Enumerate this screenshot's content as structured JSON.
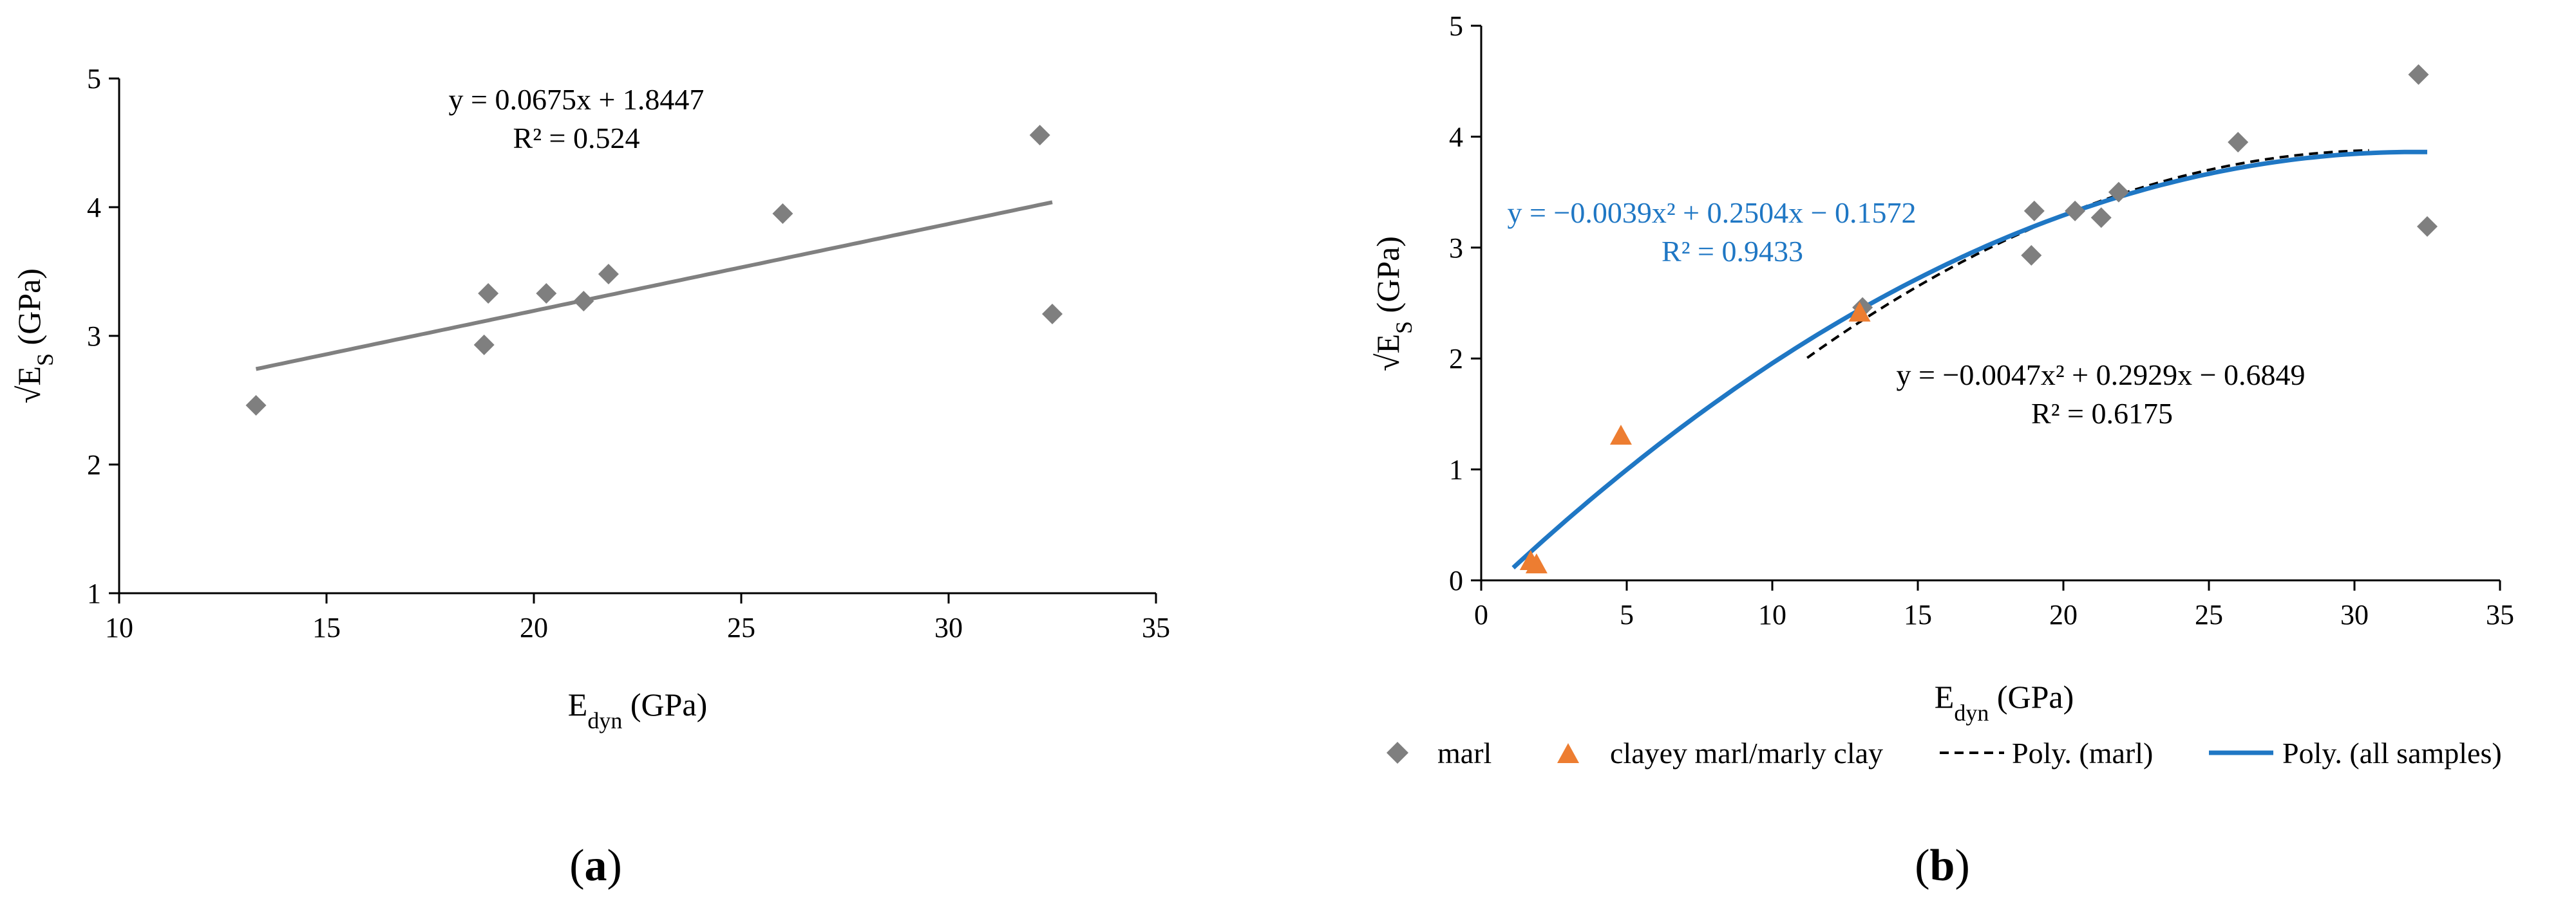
{
  "chart_data": [
    {
      "type": "scatter",
      "panel_label": "a",
      "xlabel": {
        "main": "E",
        "sub": "dyn",
        "unit": " (GPa)"
      },
      "ylabel": {
        "main": "√E",
        "sub": "S",
        "unit": " (GPa)"
      },
      "xlim": [
        10,
        35
      ],
      "ylim": [
        1,
        5
      ],
      "xticks": [
        10,
        15,
        20,
        25,
        30,
        35
      ],
      "yticks": [
        1,
        2,
        3,
        4,
        5
      ],
      "grid": false,
      "series": [
        {
          "marker": "diamond",
          "color": "#7f7f7f",
          "points": [
            [
              13.3,
              2.46
            ],
            [
              18.8,
              2.93
            ],
            [
              18.9,
              3.33
            ],
            [
              20.3,
              3.33
            ],
            [
              21.2,
              3.27
            ],
            [
              21.8,
              3.48
            ],
            [
              26.0,
              3.95
            ],
            [
              32.2,
              4.56
            ],
            [
              32.5,
              3.17
            ]
          ]
        }
      ],
      "trendlines": [
        {
          "kind": "linear",
          "coefficients": [
            0.0675,
            1.8447
          ],
          "range": [
            13.3,
            32.5
          ],
          "color": "#808080",
          "dash": "solid",
          "equation": "y = 0.0675x + 1.8447",
          "r2": "R² = 0.524"
        }
      ]
    },
    {
      "type": "scatter",
      "panel_label": "b",
      "xlabel": {
        "main": "E",
        "sub": "dyn",
        "unit": " (GPa)"
      },
      "ylabel": {
        "main": "√E",
        "sub": "S",
        "unit": " (GPa)"
      },
      "xlim": [
        0,
        35
      ],
      "ylim": [
        0,
        5
      ],
      "xticks": [
        0,
        5,
        10,
        15,
        20,
        25,
        30,
        35
      ],
      "yticks": [
        0,
        1,
        2,
        3,
        4,
        5
      ],
      "grid": false,
      "legend_position": "bottom",
      "series": [
        {
          "name": "marl",
          "marker": "diamond",
          "color": "#7f7f7f",
          "points": [
            [
              13.1,
              2.46
            ],
            [
              18.9,
              2.93
            ],
            [
              19.0,
              3.33
            ],
            [
              20.4,
              3.33
            ],
            [
              21.3,
              3.27
            ],
            [
              21.9,
              3.5
            ],
            [
              26.0,
              3.95
            ],
            [
              32.2,
              4.56
            ],
            [
              32.5,
              3.19
            ]
          ]
        },
        {
          "name": "clayey marl/marly clay",
          "marker": "triangle",
          "color": "#ed7d31",
          "points": [
            [
              1.7,
              0.18
            ],
            [
              1.9,
              0.15
            ],
            [
              4.8,
              1.31
            ],
            [
              13.0,
              2.42
            ]
          ]
        }
      ],
      "trendlines": [
        {
          "name": "Poly. (marl)",
          "kind": "poly2",
          "coefficients": [
            -0.0047,
            0.2929,
            -0.6849
          ],
          "range": [
            11.2,
            30.5
          ],
          "color": "#000000",
          "dash": "dashed",
          "equation": "y = −0.0047x² + 0.2929x − 0.6849",
          "r2": "R² = 0.6175"
        },
        {
          "name": "Poly. (all samples)",
          "kind": "poly2",
          "coefficients": [
            -0.0039,
            0.2504,
            -0.1572
          ],
          "range": [
            1.1,
            32.5
          ],
          "color": "#1f77c4",
          "dash": "solid",
          "equation": "y = −0.0039x² + 0.2504x − 0.1572",
          "r2": "R² = 0.9433"
        }
      ]
    }
  ]
}
